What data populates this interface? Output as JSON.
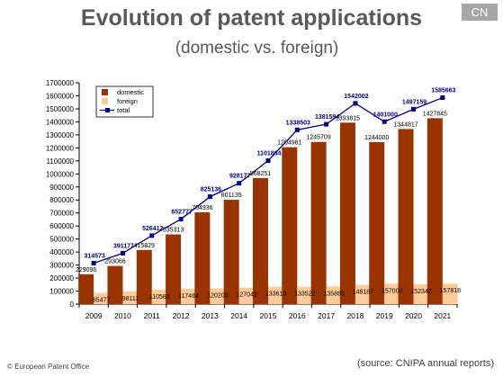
{
  "header": {
    "title": "Evolution of patent applications",
    "subtitle": "(domestic vs. foreign)",
    "badge": "CN"
  },
  "footer": {
    "left": "© European Patent Office",
    "right": "(source: CNIPA annual reports)"
  },
  "colors": {
    "domestic": "#993300",
    "foreign": "#ffcc99",
    "total": "#000080",
    "badge": "#a6a6a6",
    "title": "#595959"
  },
  "chart_data": {
    "type": "bar",
    "categories": [
      "2009",
      "2010",
      "2011",
      "2012",
      "2013",
      "2014",
      "2015",
      "2016",
      "2017",
      "2018",
      "2019",
      "2020",
      "2021"
    ],
    "series": [
      {
        "name": "domestic",
        "type": "bar",
        "values": [
          229096,
          293066,
          415829,
          535313,
          704936,
          801135,
          968251,
          1204981,
          1245709,
          1393815,
          1244000,
          1344817,
          1427845
        ]
      },
      {
        "name": "foreign",
        "type": "bar",
        "values": [
          85477,
          98111,
          110583,
          117464,
          120200,
          127042,
          133613,
          133522,
          135885,
          148187,
          157000,
          152342,
          157818
        ]
      },
      {
        "name": "total",
        "type": "line",
        "values": [
          314573,
          391177,
          526412,
          652777,
          825136,
          928177,
          1101864,
          1338503,
          1381594,
          1542002,
          1401000,
          1497159,
          1585663
        ]
      }
    ],
    "ylim": [
      0,
      1700000
    ],
    "yticks": [
      0,
      100000,
      200000,
      300000,
      400000,
      500000,
      600000,
      700000,
      800000,
      900000,
      1000000,
      1100000,
      1200000,
      1300000,
      1400000,
      1500000,
      1600000,
      1700000
    ],
    "legend": {
      "position": "top-left",
      "entries": [
        "domestic",
        "foreign",
        "total"
      ]
    },
    "grid": false,
    "xlabel": "",
    "ylabel": ""
  }
}
